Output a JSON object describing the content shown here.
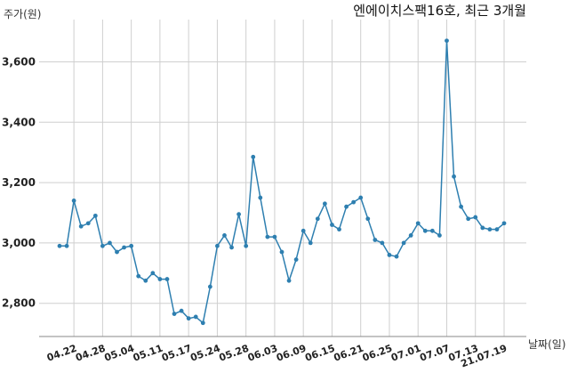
{
  "chart_data": {
    "type": "line",
    "title": "엔에이치스팩16호, 최근 3개월",
    "ylabel": "주가(원)",
    "xlabel": "날짜(일)",
    "ylim": [
      2690,
      3740
    ],
    "yticks": [
      2800,
      3000,
      3200,
      3400,
      3600
    ],
    "ytick_labels": [
      "2,800",
      "3,000",
      "3,200",
      "3,400",
      "3,600"
    ],
    "xtick_labels": [
      "04.22",
      "04.28",
      "05.04",
      "05.11",
      "05.17",
      "05.24",
      "05.28",
      "06.03",
      "06.09",
      "06.15",
      "06.21",
      "06.25",
      "07.01",
      "07.07",
      "07.13",
      "21.07.19"
    ],
    "xtick_index": [
      2,
      6,
      10,
      14,
      18,
      22,
      26,
      30,
      34,
      38,
      42,
      46,
      50,
      54,
      58,
      62
    ],
    "grid": true,
    "line_color": "#2e7fb0",
    "series": [
      {
        "values": [
          2990,
          2990,
          3140,
          3055,
          3065,
          3090,
          2990,
          3000,
          2970,
          2985,
          2990,
          2890,
          2875,
          2900,
          2880,
          2880,
          2765,
          2775,
          2750,
          2755,
          2735,
          2855,
          2990,
          3025,
          2985,
          3095,
          2990,
          3285,
          3150,
          3020,
          3020,
          2970,
          2875,
          2945,
          3040,
          3000,
          3080,
          3130,
          3060,
          3045,
          3120,
          3135,
          3150,
          3080,
          3010,
          3000,
          2960,
          2955,
          3000,
          3025,
          3065,
          3040,
          3040,
          3025,
          3670,
          3220,
          3120,
          3080,
          3085,
          3050,
          3045,
          3045,
          3065
        ]
      }
    ]
  }
}
